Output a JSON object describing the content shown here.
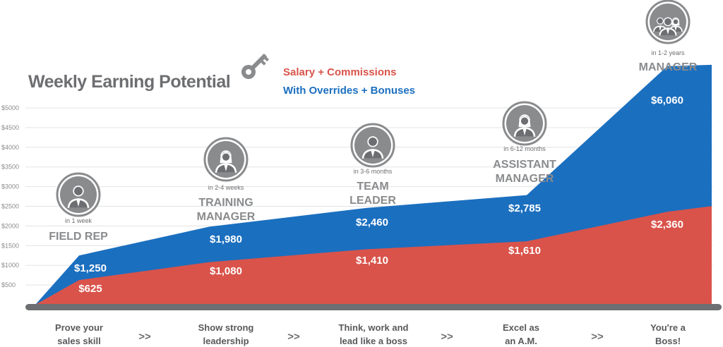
{
  "chart_data": {
    "type": "area",
    "title": "Weekly Earning Potential",
    "y_ticks": [
      "$5000",
      "$4500",
      "$4000",
      "$3500",
      "$3000",
      "$2500",
      "$2000",
      "$1500",
      "$1000",
      "$500"
    ],
    "ylim": [
      0,
      5300
    ],
    "legend": {
      "salary": "Salary + Commissions",
      "overrides": "With Overrides + Bonuses",
      "key_icon": "key-icon"
    },
    "colors": {
      "salary": "#d9534a",
      "overrides": "#1b6fbf",
      "grey": "#6d6e71"
    },
    "x": [
      "Field Rep",
      "Training Manager",
      "Team Leader",
      "Assistant Manager",
      "Manager"
    ],
    "series": [
      {
        "name": "Salary + Commissions",
        "values": [
          625,
          1080,
          1410,
          1610,
          2360
        ],
        "labels": [
          "$625",
          "$1,080",
          "$1,410",
          "$1,610",
          "$2,360"
        ]
      },
      {
        "name": "With Overrides + Bonuses",
        "values": [
          1250,
          1980,
          2460,
          2785,
          6060
        ],
        "labels": [
          "$1,250",
          "$1,980",
          "$2,460",
          "$2,785",
          "$6,060"
        ]
      }
    ],
    "stages": [
      {
        "time": "in 1 week",
        "title_lines": [
          "FIELD REP"
        ],
        "icon": "man-tie-icon"
      },
      {
        "time": "in 2-4 weeks",
        "title_lines": [
          "TRAINING",
          "MANAGER"
        ],
        "icon": "woman-icon"
      },
      {
        "time": "in 3-6 months",
        "title_lines": [
          "TEAM",
          "LEADER"
        ],
        "icon": "man-suit-icon"
      },
      {
        "time": "in 6-12 months",
        "title_lines": [
          "ASSISTANT",
          "MANAGER"
        ],
        "icon": "woman-suit-icon"
      },
      {
        "time": "in 1-2 years",
        "title_lines": [
          "MANAGER"
        ],
        "icon": "group-icon"
      }
    ],
    "steps": [
      [
        "Prove your",
        "sales skill"
      ],
      [
        "Show strong",
        "leadership"
      ],
      [
        "Think, work and",
        "lead like a boss"
      ],
      [
        "Excel as",
        "an A.M."
      ],
      [
        "You're a",
        "Boss!"
      ]
    ],
    "step_separator": ">>"
  }
}
